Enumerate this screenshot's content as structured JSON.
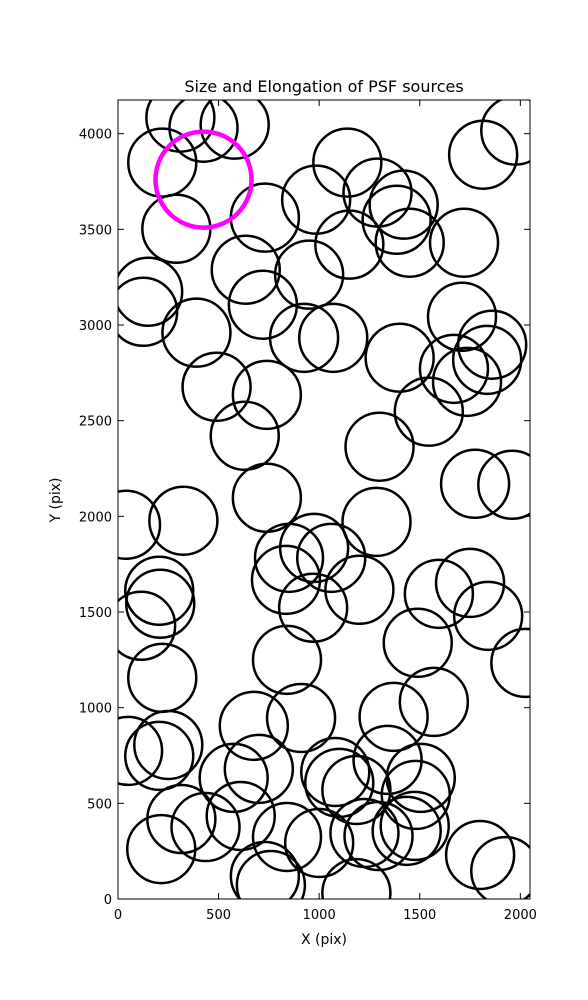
{
  "chart_data": {
    "type": "scatter",
    "title": "Size and Elongation of PSF sources",
    "x_label": "X (pix)",
    "y_label": "Y (pix)",
    "xlim": [
      0,
      2048
    ],
    "ylim": [
      0,
      4176
    ],
    "xticks": [
      0,
      500,
      1000,
      1500,
      2000
    ],
    "yticks": [
      0,
      500,
      1000,
      1500,
      2000,
      2500,
      3000,
      3500,
      4000
    ],
    "series": [
      {
        "color": "#000000",
        "x": [
          310,
          425,
          580,
          220,
          290,
          730,
          1140,
          985,
          1290,
          1420,
          1385,
          1450,
          1720,
          1975,
          1815,
          1150,
          950,
          635,
          720,
          150,
          125,
          390,
          925,
          1070,
          1400,
          1710,
          1860,
          1670,
          1735,
          1835,
          490,
          740,
          630,
          1545,
          1300,
          740,
          1775,
          1960,
          325,
          40,
          1285,
          850,
          975,
          1060,
          1200,
          835,
          970,
          205,
          210,
          115,
          1750,
          1595,
          1840,
          1490,
          2025,
          220,
          840,
          1570,
          1370,
          910,
          675,
          250,
          205,
          50,
          700,
          575,
          1340,
          1480,
          1185,
          1100,
          1505,
          1080,
          1435,
          610,
          315,
          435,
          840,
          1000,
          1225,
          1295,
          1475,
          1800,
          1925,
          215,
          760,
          1185,
          730
        ],
        "y": [
          4084,
          4031,
          4047,
          3849,
          3503,
          3561,
          3849,
          3655,
          3692,
          3629,
          3550,
          3430,
          3430,
          4016,
          3890,
          3420,
          3263,
          3289,
          3106,
          3174,
          3069,
          2960,
          2933,
          2933,
          2829,
          3043,
          2897,
          2771,
          2703,
          2818,
          2677,
          2635,
          2421,
          2547,
          2364,
          2097,
          2170,
          2165,
          1977,
          1956,
          1971,
          1783,
          1835,
          1783,
          1616,
          1668,
          1522,
          1611,
          1543,
          1428,
          1652,
          1595,
          1480,
          1339,
          1234,
          1156,
          1250,
          1030,
          952,
          946,
          905,
          805,
          748,
          774,
          680,
          633,
          727,
          544,
          570,
          607,
          633,
          664,
          356,
          434,
          418,
          376,
          324,
          293,
          345,
          329,
          382,
          230,
          146,
          261,
          73,
          31,
          120
        ]
      },
      {
        "color": "#ff00ff",
        "x": [
          425
        ],
        "y": [
          3760
        ]
      }
    ]
  }
}
